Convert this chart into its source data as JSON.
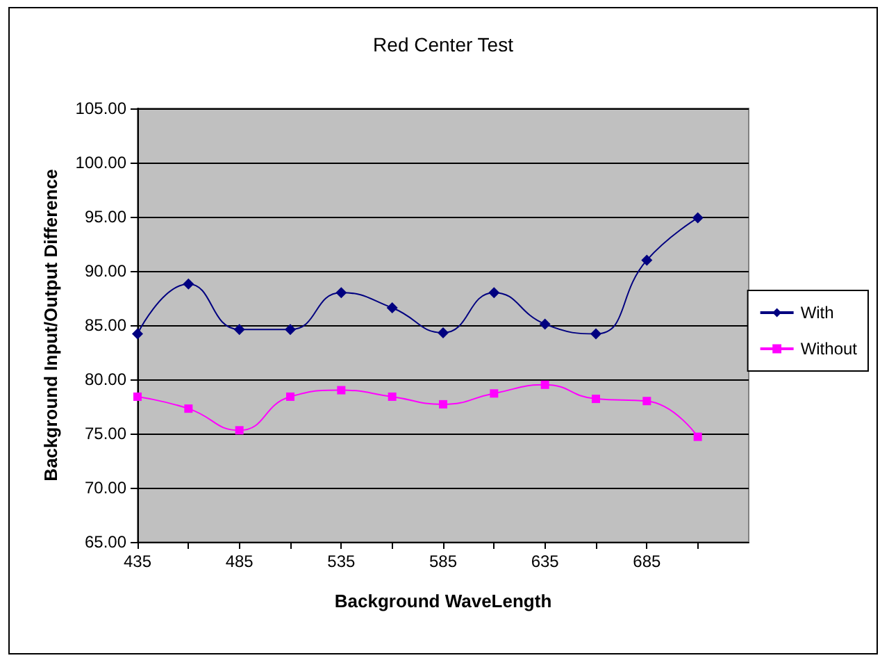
{
  "chart_data": {
    "type": "line",
    "title": "Red Center Test",
    "xlabel": "Background WaveLength",
    "ylabel": "Background Input/Output Difference",
    "x": [
      435,
      460,
      485,
      510,
      535,
      560,
      585,
      610,
      635,
      660,
      685,
      710
    ],
    "xlim": [
      435,
      735
    ],
    "xticks": [
      435,
      485,
      535,
      585,
      635,
      685
    ],
    "ylim": [
      65,
      105
    ],
    "yticks": [
      {
        "value": 65,
        "label": "65.00"
      },
      {
        "value": 70,
        "label": "70.00"
      },
      {
        "value": 75,
        "label": "75.00"
      },
      {
        "value": 80,
        "label": "80.00"
      },
      {
        "value": 85,
        "label": "85.00"
      },
      {
        "value": 90,
        "label": "90.00"
      },
      {
        "value": 95,
        "label": "95.00"
      },
      {
        "value": 100,
        "label": "100.00"
      },
      {
        "value": 105,
        "label": "105.00"
      }
    ],
    "grid": "y",
    "legend": "right",
    "series": [
      {
        "name": "With",
        "color": "#000080",
        "marker": "diamond",
        "values": [
          84.2,
          88.8,
          84.6,
          84.6,
          88.0,
          86.6,
          84.3,
          88.0,
          85.1,
          84.2,
          91.0,
          94.9
        ]
      },
      {
        "name": "Without",
        "color": "#ff00ff",
        "marker": "square",
        "values": [
          78.4,
          77.3,
          75.3,
          78.4,
          79.0,
          78.4,
          77.7,
          78.7,
          79.5,
          78.2,
          78.0,
          74.7
        ]
      }
    ]
  }
}
